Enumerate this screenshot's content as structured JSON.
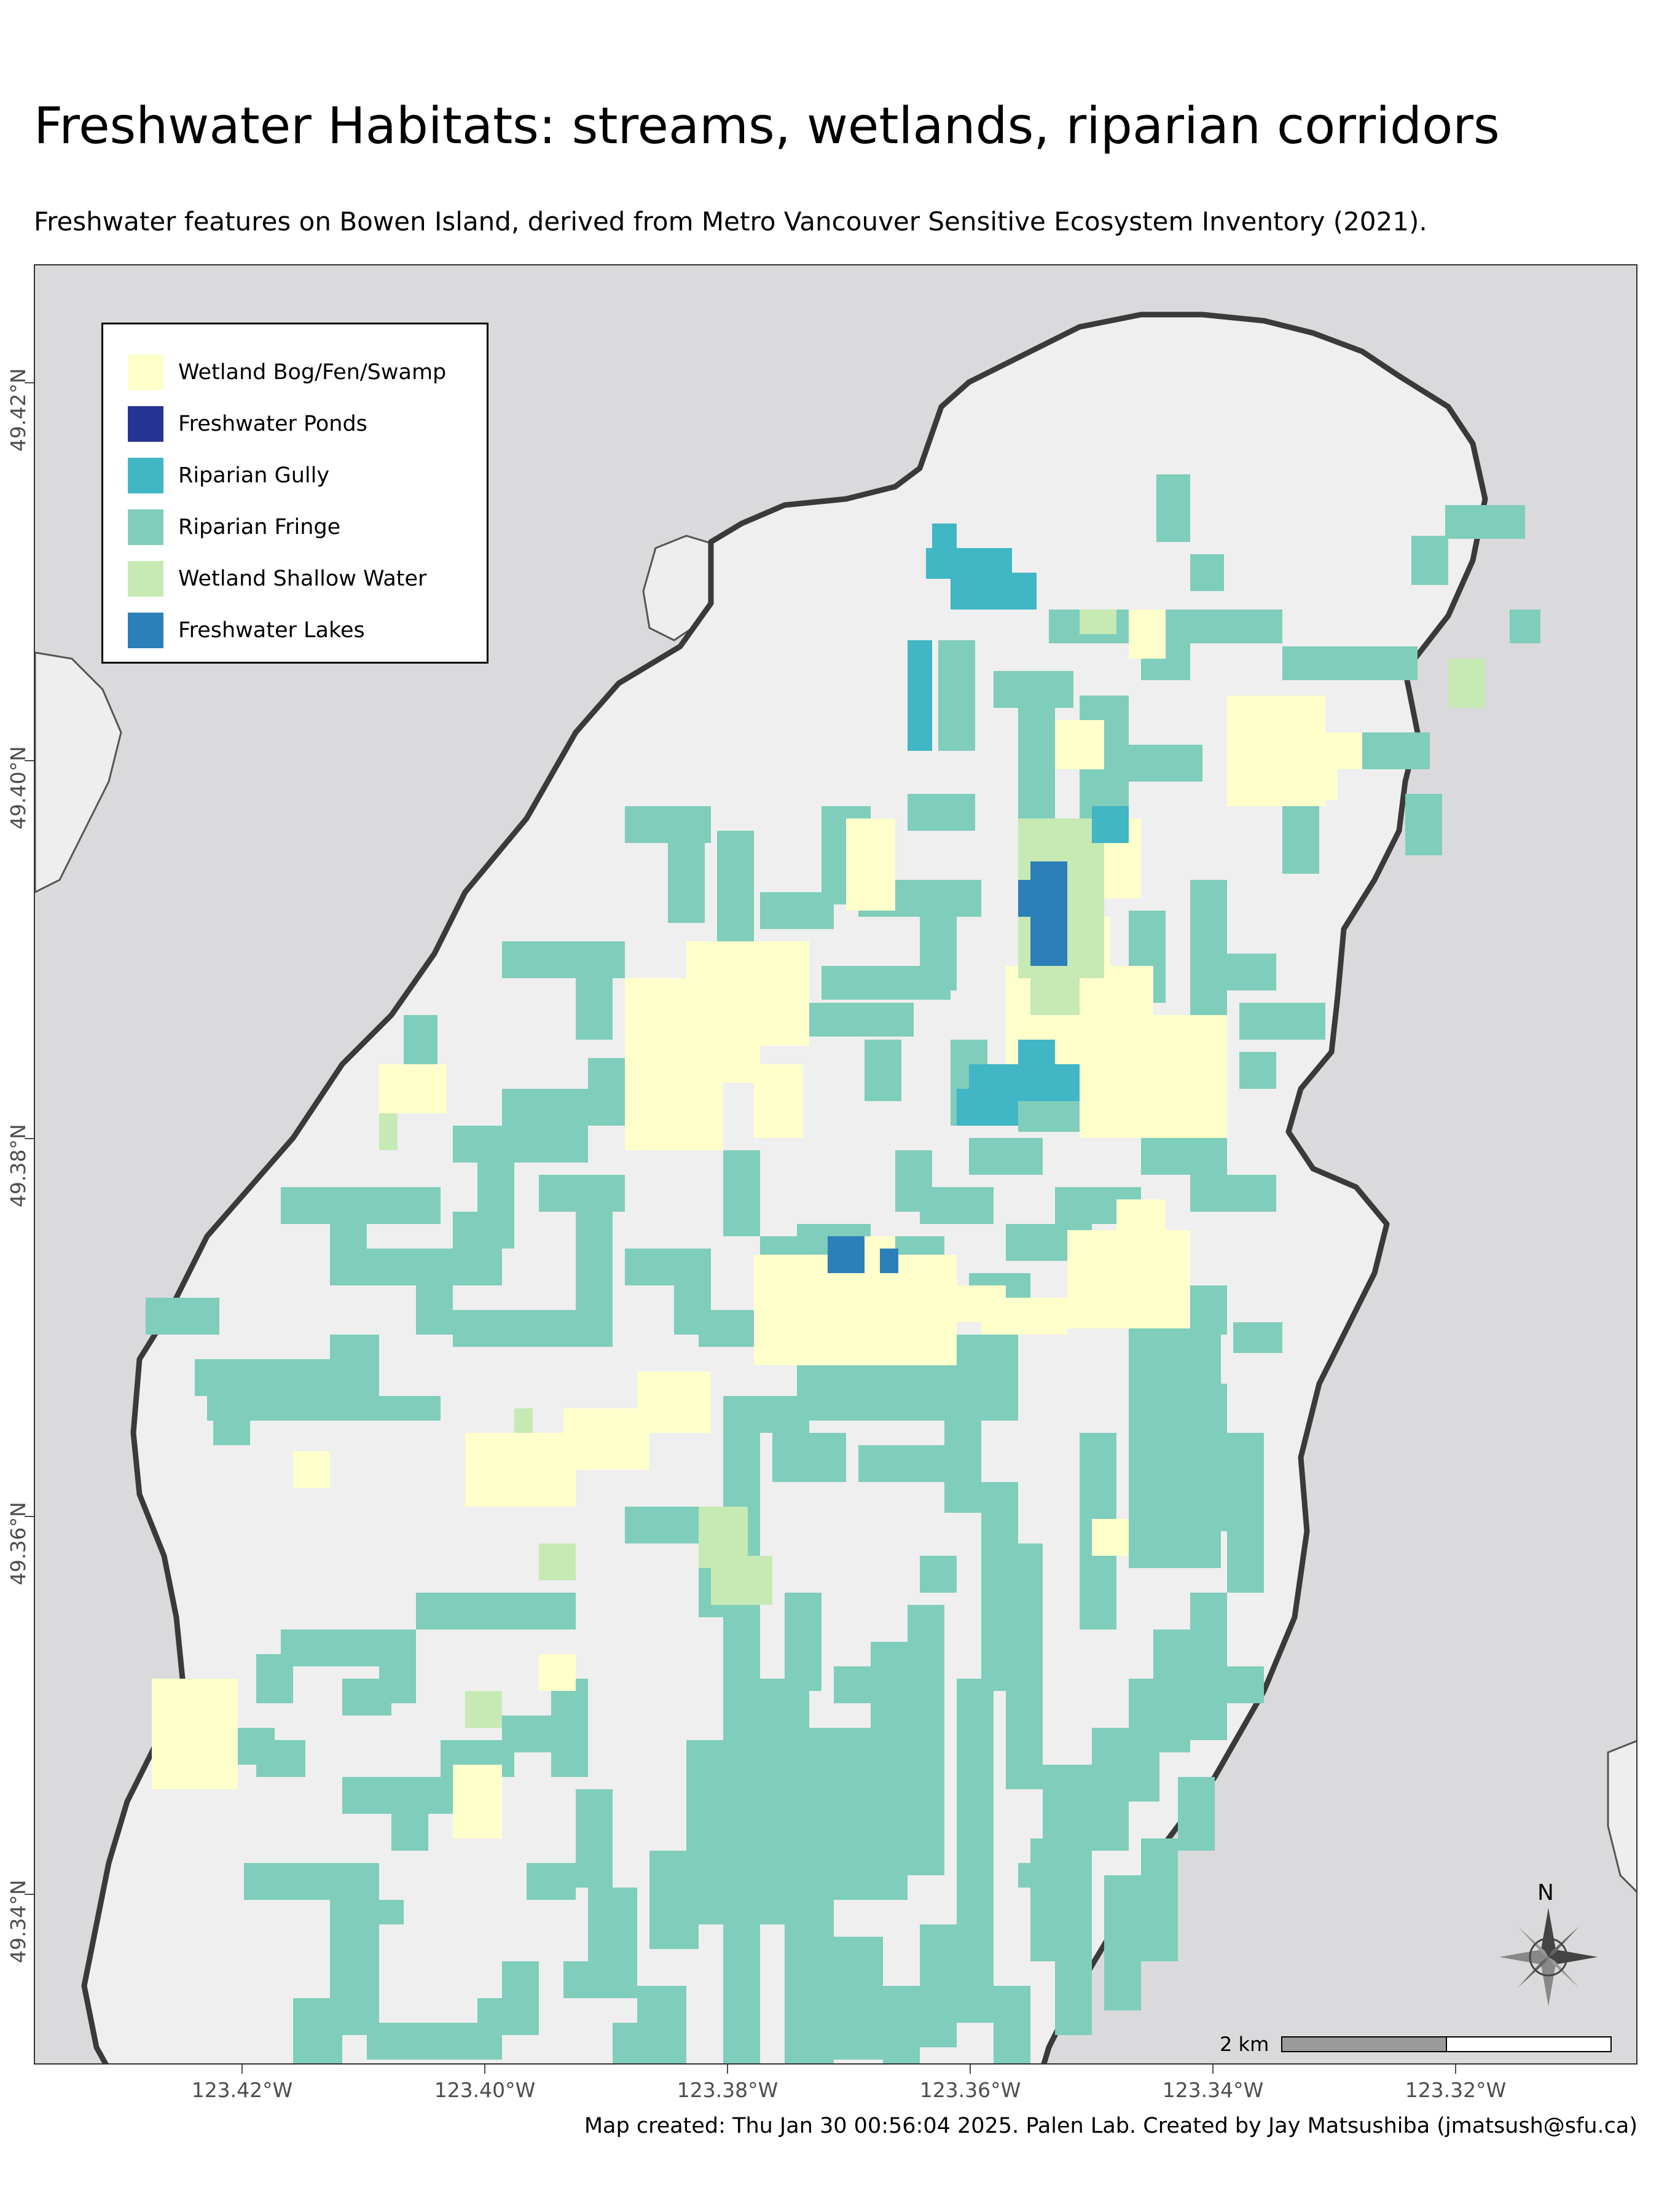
{
  "title": "Freshwater Habitats: streams, wetlands, riparian corridors",
  "subtitle": "Freshwater features on Bowen Island, derived from Metro Vancouver Sensitive Ecosystem Inventory (2021).",
  "caption": "Map created: Thu Jan 30 00:56:04 2025. Palen Lab. Created by Jay Matsushiba (jmatsush@sfu.ca)",
  "legend": [
    {
      "label": "Wetland Bog/Fen/Swamp",
      "color": "#ffffcc"
    },
    {
      "label": "Freshwater Ponds",
      "color": "#253494"
    },
    {
      "label": "Riparian Gully",
      "color": "#41b6c4"
    },
    {
      "label": "Riparian Fringe",
      "color": "#7fcdbb"
    },
    {
      "label": "Wetland Shallow Water",
      "color": "#c7e9b4"
    },
    {
      "label": "Freshwater Lakes",
      "color": "#2c7fb8"
    }
  ],
  "axes": {
    "y_ticks": [
      "49.42°N",
      "49.40°N",
      "49.38°N",
      "49.36°N",
      "49.34°N"
    ],
    "x_ticks": [
      "123.42°W",
      "123.40°W",
      "123.38°W",
      "123.36°W",
      "123.34°W",
      "123.32°W"
    ]
  },
  "scalebar": {
    "label": "2 km"
  },
  "north_arrow": {
    "label": "N",
    "icon": "compass-rose-icon"
  },
  "colors": {
    "water": "#dadadc",
    "land": "#efefef",
    "coast": "#3a3a3a"
  }
}
